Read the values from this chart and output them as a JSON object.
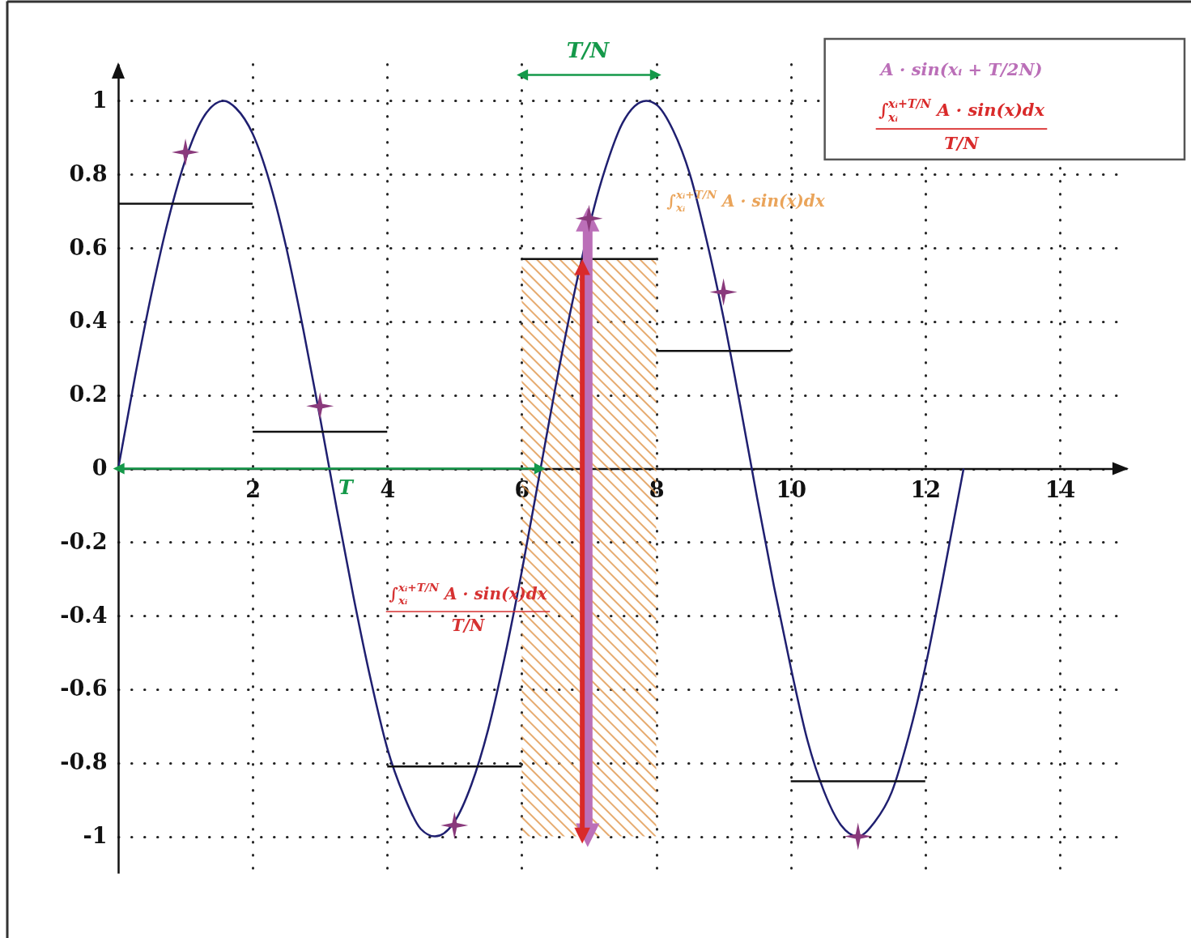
{
  "chart_data": {
    "type": "line",
    "xlim": [
      0,
      15
    ],
    "ylim": [
      -1.1,
      1.1
    ],
    "xticks": [
      2,
      4,
      6,
      8,
      10,
      12,
      14
    ],
    "yticks": [
      -1,
      -0.8,
      -0.6,
      -0.4,
      -0.2,
      0,
      0.2,
      0.4,
      0.6,
      0.8,
      1
    ],
    "grid": true,
    "legend": "top right",
    "series": [
      {
        "color": "#1f1f70",
        "x": [
          0,
          0.25,
          0.5,
          0.75,
          1,
          1.25,
          1.57,
          1.75,
          2,
          2.25,
          2.5,
          2.75,
          3,
          3.25,
          3.5,
          3.75,
          4,
          4.25,
          4.5,
          4.71,
          5,
          5.25,
          5.5,
          5.75,
          6,
          6.28,
          6.5,
          6.75,
          7.15,
          7.25,
          7.5,
          7.85,
          8,
          8.25,
          8.5,
          8.75,
          9,
          9.25,
          9.5,
          9.75,
          10,
          10.25,
          10.5,
          10.75,
          11,
          11.25,
          11.5,
          11.75,
          12,
          12.25,
          12.57
        ],
        "values": [
          0,
          0.25,
          0.48,
          0.68,
          0.84,
          0.95,
          1.0,
          0.98,
          0.91,
          0.78,
          0.6,
          0.38,
          0.14,
          -0.11,
          -0.35,
          -0.57,
          -0.76,
          -0.89,
          -0.98,
          -1.0,
          -0.96,
          -0.86,
          -0.71,
          -0.51,
          -0.28,
          0,
          0.22,
          0.45,
          0.76,
          0.82,
          0.94,
          1.0,
          0.99,
          0.92,
          0.8,
          0.62,
          0.41,
          0.17,
          -0.08,
          -0.32,
          -0.54,
          -0.74,
          -0.88,
          -0.97,
          -1.0,
          -0.96,
          -0.88,
          -0.73,
          -0.54,
          -0.31,
          0
        ]
      },
      {
        "color": "#111111",
        "x": [
          0,
          2
        ],
        "values": [
          0.72,
          0.72
        ]
      },
      {
        "color": "#111111",
        "x": [
          2,
          4
        ],
        "values": [
          0.1,
          0.1
        ]
      },
      {
        "color": "#111111",
        "x": [
          4,
          6
        ],
        "values": [
          -0.81,
          -0.81
        ]
      },
      {
        "color": "#111111",
        "x": [
          6,
          8
        ],
        "values": [
          0.57,
          0.57
        ],
        "lower": [
          -1,
          -1
        ],
        "upper": [
          0.57,
          0.57
        ]
      },
      {
        "color": "#111111",
        "x": [
          8,
          10
        ],
        "values": [
          0.32,
          0.32
        ]
      },
      {
        "color": "#111111",
        "x": [
          10,
          12
        ],
        "values": [
          -0.85,
          -0.85
        ]
      },
      {
        "color": "#15994a",
        "marker": "triangle",
        "x": [
          0,
          6.28
        ],
        "values": [
          0,
          0
        ]
      },
      {
        "color": "#15994a",
        "marker": "triangle",
        "x": [
          6,
          8
        ],
        "values": [
          1.07,
          1.07
        ]
      },
      {
        "name": "A · sin(xᵢ + T/2N)",
        "color": "#bb6fb8",
        "marker": "triangle",
        "x": [
          6.98,
          6.98
        ],
        "values": [
          -1,
          0.68
        ]
      },
      {
        "name": "∫$_{xᵢ}$$^{xᵢ+T/N}$ A · sin(x)dx\nT/N",
        "color": "#d92a2a",
        "marker": "triangle",
        "x": [
          6.9,
          6.9
        ],
        "values": [
          -1,
          0.55
        ]
      },
      {
        "type": "scatter",
        "color": "#8a3a7c",
        "marker": "star",
        "x": [
          1,
          3,
          5,
          7,
          9,
          11
        ],
        "values": [
          0.86,
          0.17,
          -0.97,
          0.68,
          0.48,
          -1.0
        ]
      }
    ],
    "annotations": [
      "T",
      "T/N",
      "∫$_{xᵢ}$$^{xᵢ+T/N}$ A · sin(x)dx",
      "∫$_{xᵢ}$$^{xᵢ+T/N}$ A · sin(x)dx\nT/N"
    ]
  }
}
